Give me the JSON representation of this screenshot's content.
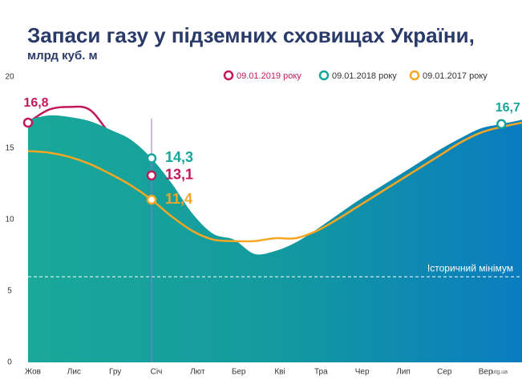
{
  "chart_data": {
    "type": "area-line",
    "title": "Запаси газу у підземних сховищах України,",
    "subtitle": "млрд куб. м",
    "source": "utg.ua",
    "categories": [
      "Жов",
      null,
      "Лис",
      null,
      "Гру",
      null,
      "Січ",
      null,
      "Лют",
      null,
      "Бер",
      null,
      "Кві",
      null,
      "Тра",
      null,
      "Чер",
      null,
      "Лип",
      null,
      "Сер",
      null,
      "Вер",
      null,
      null
    ],
    "ylim": [
      0,
      20
    ],
    "yticks": [
      0,
      5,
      10,
      15,
      20
    ],
    "reference_line": {
      "value": 6,
      "label": "Історичний мінімум"
    },
    "series": [
      {
        "name": "09.01.2019 року",
        "color": "#c2185b",
        "kind": "line",
        "values": [
          16.8,
          17.7,
          17.9,
          17.7,
          16.0,
          14.8,
          13.1,
          null,
          null,
          null,
          null,
          null,
          null,
          null,
          null,
          null,
          null,
          null,
          null,
          null,
          null,
          null,
          null,
          null,
          null
        ],
        "value_labels": [
          "16,8",
          null,
          null,
          null,
          null,
          null,
          "13,1",
          null,
          null,
          null,
          null,
          null,
          null,
          null,
          null,
          null,
          null,
          null,
          null,
          null,
          null,
          null,
          null,
          null,
          null
        ]
      },
      {
        "name": "09.01.2018 року",
        "color": "#17a59b",
        "kind": "area",
        "values": [
          17.0,
          17.3,
          17.2,
          16.9,
          16.3,
          15.6,
          14.3,
          12.5,
          10.4,
          9.0,
          8.6,
          7.6,
          7.8,
          8.4,
          9.3,
          10.3,
          11.3,
          12.2,
          13.1,
          14.0,
          14.9,
          15.7,
          16.4,
          16.7,
          17.0
        ],
        "value_labels": [
          null,
          null,
          null,
          null,
          null,
          null,
          "14,3",
          null,
          null,
          null,
          null,
          null,
          null,
          null,
          null,
          null,
          null,
          null,
          null,
          null,
          null,
          null,
          null,
          "16,7",
          null
        ]
      },
      {
        "name": "09.01.2017 року",
        "color": "#f5a623",
        "kind": "line",
        "values": [
          14.8,
          14.7,
          14.4,
          13.9,
          13.2,
          12.4,
          11.4,
          10.2,
          9.2,
          8.6,
          8.5,
          8.5,
          8.7,
          8.7,
          9.2,
          10.0,
          10.9,
          11.8,
          12.7,
          13.6,
          14.5,
          15.4,
          16.1,
          16.5,
          16.8
        ],
        "value_labels": [
          null,
          null,
          null,
          null,
          null,
          null,
          "11,4",
          null,
          null,
          null,
          null,
          null,
          null,
          null,
          null,
          null,
          null,
          null,
          null,
          null,
          null,
          null,
          null,
          null,
          null
        ]
      }
    ]
  }
}
